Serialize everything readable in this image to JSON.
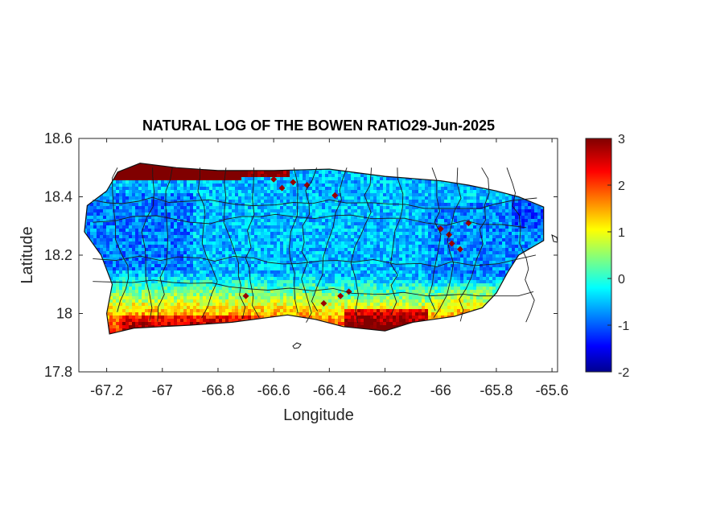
{
  "figure": {
    "title": "NATURAL LOG OF THE BOWEN RATIO29-Jun-2025"
  },
  "chart_data": {
    "type": "heatmap",
    "title": "NATURAL LOG OF THE BOWEN RATIO29-Jun-2025",
    "xlabel": "Longitude",
    "ylabel": "Latitude",
    "xlim": [
      -67.3,
      -65.58
    ],
    "ylim": [
      17.8,
      18.6
    ],
    "xticks": [
      -67.2,
      -67,
      -66.8,
      -66.6,
      -66.4,
      -66.2,
      -66,
      -65.8,
      -65.6
    ],
    "xtick_labels": [
      "-67.2",
      "-67",
      "-66.8",
      "-66.6",
      "-66.4",
      "-66.2",
      "-66",
      "-65.8",
      "-65.6"
    ],
    "yticks": [
      17.8,
      18,
      18.2,
      18.4,
      18.6
    ],
    "ytick_labels": [
      "17.8",
      "18",
      "18.2",
      "18.4",
      "18.6"
    ],
    "grid": false,
    "colorbar": {
      "colormap": "jet",
      "limits": [
        -2,
        3
      ],
      "ticks": [
        -2,
        -1,
        0,
        1,
        2,
        3
      ],
      "tick_labels": [
        "-2",
        "-1",
        "0",
        "1",
        "2",
        "3"
      ],
      "placement": "right"
    },
    "island_outline": [
      [
        -67.27,
        18.37
      ],
      [
        -67.2,
        18.42
      ],
      [
        -67.16,
        18.485
      ],
      [
        -67.08,
        18.515
      ],
      [
        -66.95,
        18.5
      ],
      [
        -66.8,
        18.49
      ],
      [
        -66.6,
        18.49
      ],
      [
        -66.4,
        18.495
      ],
      [
        -66.2,
        18.47
      ],
      [
        -66.0,
        18.455
      ],
      [
        -65.9,
        18.44
      ],
      [
        -65.8,
        18.42
      ],
      [
        -65.72,
        18.4
      ],
      [
        -65.63,
        18.365
      ],
      [
        -65.63,
        18.25
      ],
      [
        -65.72,
        18.2
      ],
      [
        -65.76,
        18.14
      ],
      [
        -65.8,
        18.07
      ],
      [
        -65.85,
        18.02
      ],
      [
        -65.95,
        17.99
      ],
      [
        -66.1,
        17.97
      ],
      [
        -66.2,
        17.94
      ],
      [
        -66.35,
        17.955
      ],
      [
        -66.45,
        17.98
      ],
      [
        -66.55,
        17.995
      ],
      [
        -66.75,
        17.97
      ],
      [
        -66.9,
        17.96
      ],
      [
        -67.0,
        17.955
      ],
      [
        -67.1,
        17.95
      ],
      [
        -67.19,
        17.93
      ],
      [
        -67.2,
        18.0
      ],
      [
        -67.18,
        18.1
      ],
      [
        -67.22,
        18.2
      ],
      [
        -67.28,
        18.28
      ],
      [
        -67.27,
        18.37
      ]
    ],
    "value_pattern": {
      "interior": "mostly -1 to 0 (blue to cyan)",
      "north_coast_west": "3 (dark red)",
      "south_coast": "1 to 3 (yellow to dark red)",
      "east_interior_spots": "2 to 3 (red)"
    }
  }
}
